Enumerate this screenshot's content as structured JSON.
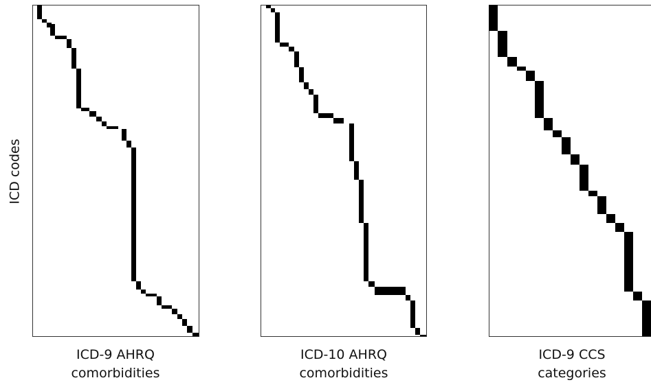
{
  "y_label": "ICD codes",
  "panels": [
    {
      "label": [
        "ICD-9 AHRQ",
        "comorbidities"
      ]
    },
    {
      "label": [
        "ICD-10 AHRQ",
        "comorbidities"
      ]
    },
    {
      "label": [
        "ICD-9 CCS",
        "categories"
      ]
    }
  ]
}
